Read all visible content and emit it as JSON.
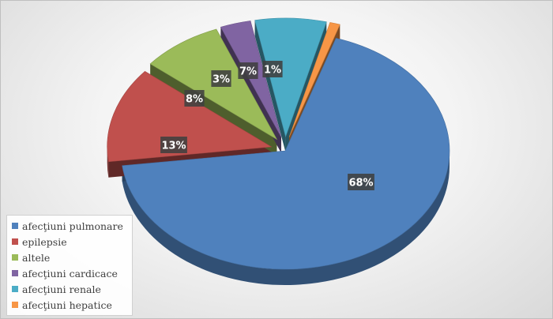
{
  "chart_data": {
    "type": "pie",
    "title": "",
    "categories": [
      "afecţiuni pulmonare",
      "epilepsie",
      "altele",
      "afecţiuni cardicace",
      "afecţiuni renale",
      "afecţiuni hepatice"
    ],
    "values": [
      68,
      13,
      8,
      3,
      7,
      1
    ],
    "value_labels": [
      "68%",
      "13%",
      "8%",
      "3%",
      "7%",
      "1%"
    ],
    "colors": [
      "#4F81BD",
      "#C0504D",
      "#9BBB59",
      "#8064A2",
      "#4BACC6",
      "#F79646"
    ],
    "style": "3d-exploded",
    "legend": {
      "position": "bottom-left",
      "items": [
        {
          "label": "afecţiuni pulmonare",
          "color": "#4F81BD"
        },
        {
          "label": "epilepsie",
          "color": "#C0504D"
        },
        {
          "label": "altele",
          "color": "#9BBB59"
        },
        {
          "label": "afecţiuni cardicace",
          "color": "#8064A2"
        },
        {
          "label": "afecţiuni renale",
          "color": "#4BACC6"
        },
        {
          "label": "afecţiuni hepatice",
          "color": "#F79646"
        }
      ]
    }
  }
}
